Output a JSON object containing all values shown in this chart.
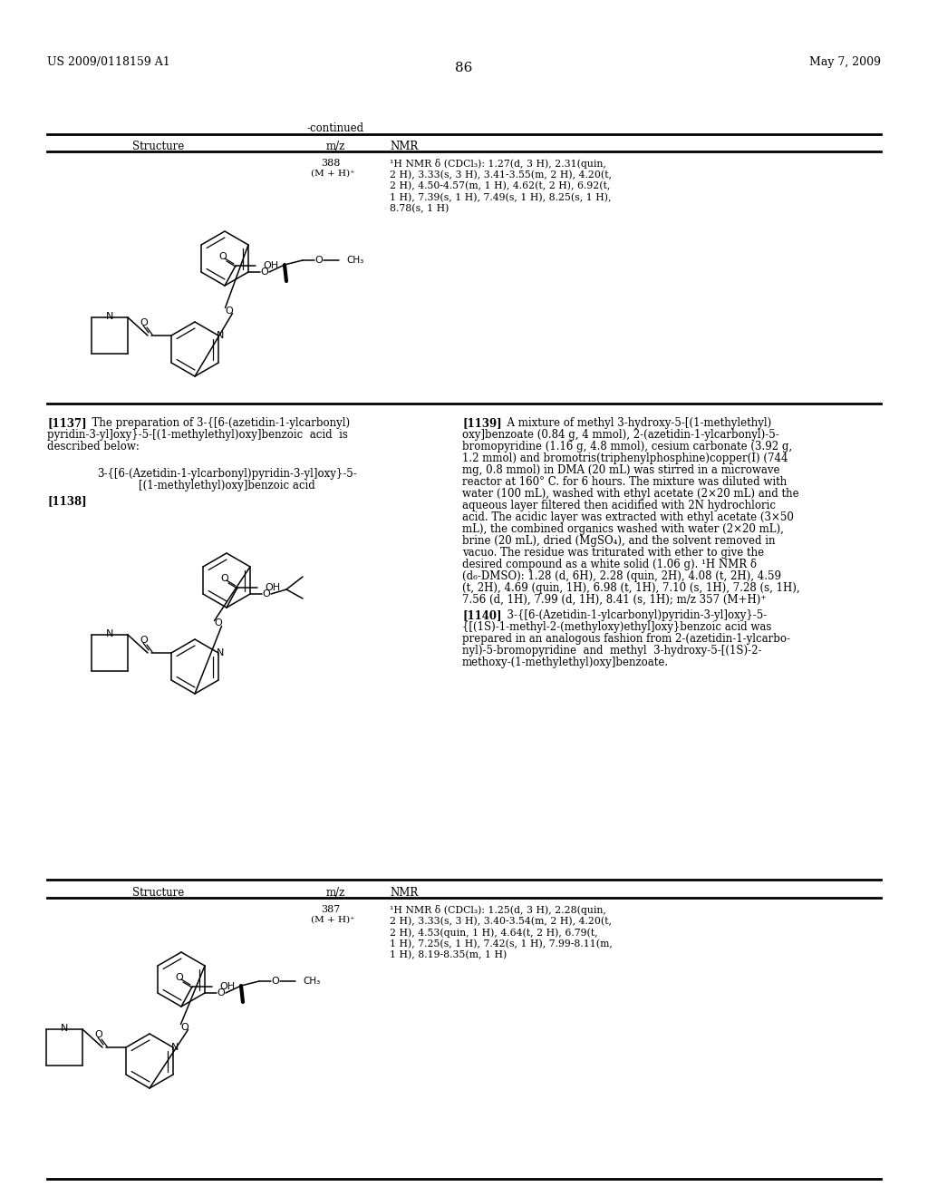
{
  "page_number": "86",
  "patent_number": "US 2009/0118159 A1",
  "patent_date": "May 7, 2009",
  "continued_label": "-continued",
  "col1_header": "Structure",
  "col2_header": "m/z",
  "col3_header": "NMR",
  "row1_mz_top": "388",
  "row1_mz_bot": "(M + H)⁺",
  "row1_nmr": "¹H NMR δ (CDCl₃): 1.27(d, 3 H), 2.31(quin,\n2 H), 3.33(s, 3 H), 3.41-3.55(m, 2 H), 4.20(t,\n2 H), 4.50-4.57(m, 1 H), 4.62(t, 2 H), 6.92(t,\n1 H), 7.39(s, 1 H), 7.49(s, 1 H), 8.25(s, 1 H),\n8.78(s, 1 H)",
  "para1137": "[1137]   The preparation of 3-{[6-(azetidin-1-ylcarbonyl)\npyridin-3-yl]oxy}-5-[(1-methylethyl)oxy]benzoic  acid  is\ndescribed below:",
  "compound_name": "3-{[6-(Azetidin-1-ylcarbonyl)pyridin-3-yl]oxy}-5-\n[(1-methylethyl)oxy]benzoic acid",
  "para1138_label": "[1138]",
  "para1139": "[1139]   A mixture of methyl 3-hydroxy-5-[(1-methylethyl)\noxy]benzoate (0.84 g, 4 mmol), 2-(azetidin-1-ylcarbonyl)-5-\nbromopyridine (1.16 g, 4.8 mmol), cesium carbonate (3.92 g,\n1.2 mmol) and bromotris(triphenylphosphine)copper(I) (744\nmg, 0.8 mmol) in DMA (20 mL) was stirred in a microwave\nreactor at 160° C. for 6 hours. The mixture was diluted with\nwater (100 mL), washed with ethyl acetate (2×20 mL) and the\naqueous layer filtered then acidified with 2N hydrochloric\nacid. The acidic layer was extracted with ethyl acetate (3×50\nmL), the combined organics washed with water (2×20 mL),\nbrine (20 mL), dried (MgSO₄), and the solvent removed in\nvacuo. The residue was triturated with ether to give the\ndesired compound as a white solid (1.06 g). ¹H NMR δ\n(d₆-DMSO): 1.28 (d, 6H), 2.28 (quin, 2H), 4.08 (t, 2H), 4.59\n(t, 2H), 4.69 (quin, 1H), 6.98 (t, 1H), 7.10 (s, 1H), 7.28 (s, 1H),\n7.56 (d, 1H), 7.99 (d, 1H), 8.41 (s, 1H); m/z 357 (M+H)⁺",
  "para1140": "[1140]   3-{[6-(Azetidin-1-ylcarbonyl)pyridin-3-yl]oxy}-5-\n{[(1S)-1-methyl-2-(methyloxy)ethyl]oxy}benzoic acid was\nprepared in an analogous fashion from 2-(azetidin-1-ylcarbo-\nnyl)-5-bromopyridine  and  methyl  3-hydroxy-5-[(1S)-2-\nmethoxy-(1-methylethyl)oxy]benzoate.",
  "row2_mz_top": "387",
  "row2_mz_bot": "(M + H)⁺",
  "row2_nmr": "¹H NMR δ (CDCl₃): 1.25(d, 3 H), 2.28(quin,\n2 H), 3.33(s, 3 H), 3.40-3.54(m, 2 H), 4.20(t,\n2 H), 4.53(quin, 1 H), 4.64(t, 2 H), 6.79(t,\n1 H), 7.25(s, 1 H), 7.42(s, 1 H), 7.99-8.11(m,\n1 H), 8.19-8.35(m, 1 H)",
  "bg": "#ffffff"
}
